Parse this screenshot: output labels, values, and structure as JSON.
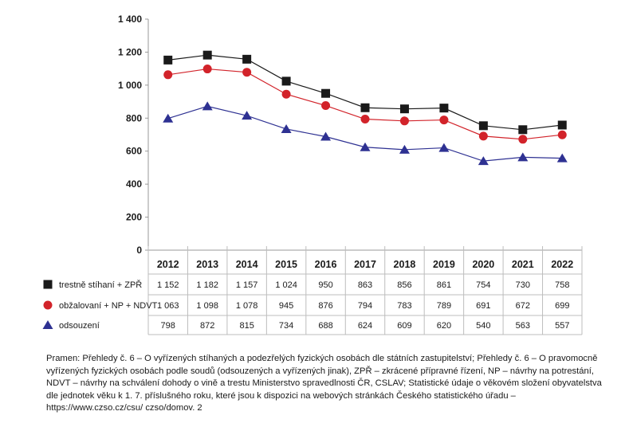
{
  "chart_data": {
    "type": "line",
    "title": "",
    "xlabel": "",
    "ylabel": "",
    "ylim": [
      0,
      1400
    ],
    "yticks": [
      0,
      200,
      400,
      600,
      800,
      1000,
      1200,
      1400
    ],
    "ytick_labels": [
      "0",
      "200",
      "400",
      "600",
      "800",
      "1 000",
      "1 200",
      "1 400"
    ],
    "categories": [
      "2012",
      "2013",
      "2014",
      "2015",
      "2016",
      "2017",
      "2018",
      "2019",
      "2020",
      "2021",
      "2022"
    ],
    "grid": false,
    "legend_placement": "data table below chart",
    "series": [
      {
        "name": "trestně stíhaní + ZPŘ",
        "values": [
          1152,
          1182,
          1157,
          1024,
          950,
          863,
          856,
          861,
          754,
          730,
          758
        ],
        "value_labels": [
          "1 152",
          "1 182",
          "1 157",
          "1 024",
          "950",
          "863",
          "856",
          "861",
          "754",
          "730",
          "758"
        ],
        "marker": "square",
        "color": "#1a1a1a"
      },
      {
        "name": "obžalovaní + NP + NDVT",
        "values": [
          1063,
          1098,
          1078,
          945,
          876,
          794,
          783,
          789,
          691,
          672,
          699
        ],
        "value_labels": [
          "1 063",
          "1 098",
          "1 078",
          "945",
          "876",
          "794",
          "783",
          "789",
          "691",
          "672",
          "699"
        ],
        "marker": "circle",
        "color": "#d2232a"
      },
      {
        "name": "odsouzení",
        "values": [
          798,
          872,
          815,
          734,
          688,
          624,
          609,
          620,
          540,
          563,
          557
        ],
        "value_labels": [
          "798",
          "872",
          "815",
          "734",
          "688",
          "624",
          "609",
          "620",
          "540",
          "563",
          "557"
        ],
        "marker": "triangle",
        "color": "#2e3192"
      }
    ]
  },
  "source_note": "Pramen: Přehledy č. 6 – O vyřízených stíhaných a podezřelých fyzických osobách dle státních zastupitelství; Přehledy č. 6 – O pravomocně vyřízených fyzických osobách podle soudů (odsouzených a vyřízených jinak), ZPŘ – zkrácené přípravné řízení, NP – návrhy na potrestání, NDVT – návrhy na schválení dohody o vině a trestu Ministerstvo spravedlnosti ČR, CSLAV; Statistické údaje o věkovém složení obyvatelstva dle jednotek věku k 1. 7. příslušného roku, které jsou k dispozici na webových stránkách Českého statistického úřadu – https://www.czso.cz/csu/ czso/domov. 2"
}
